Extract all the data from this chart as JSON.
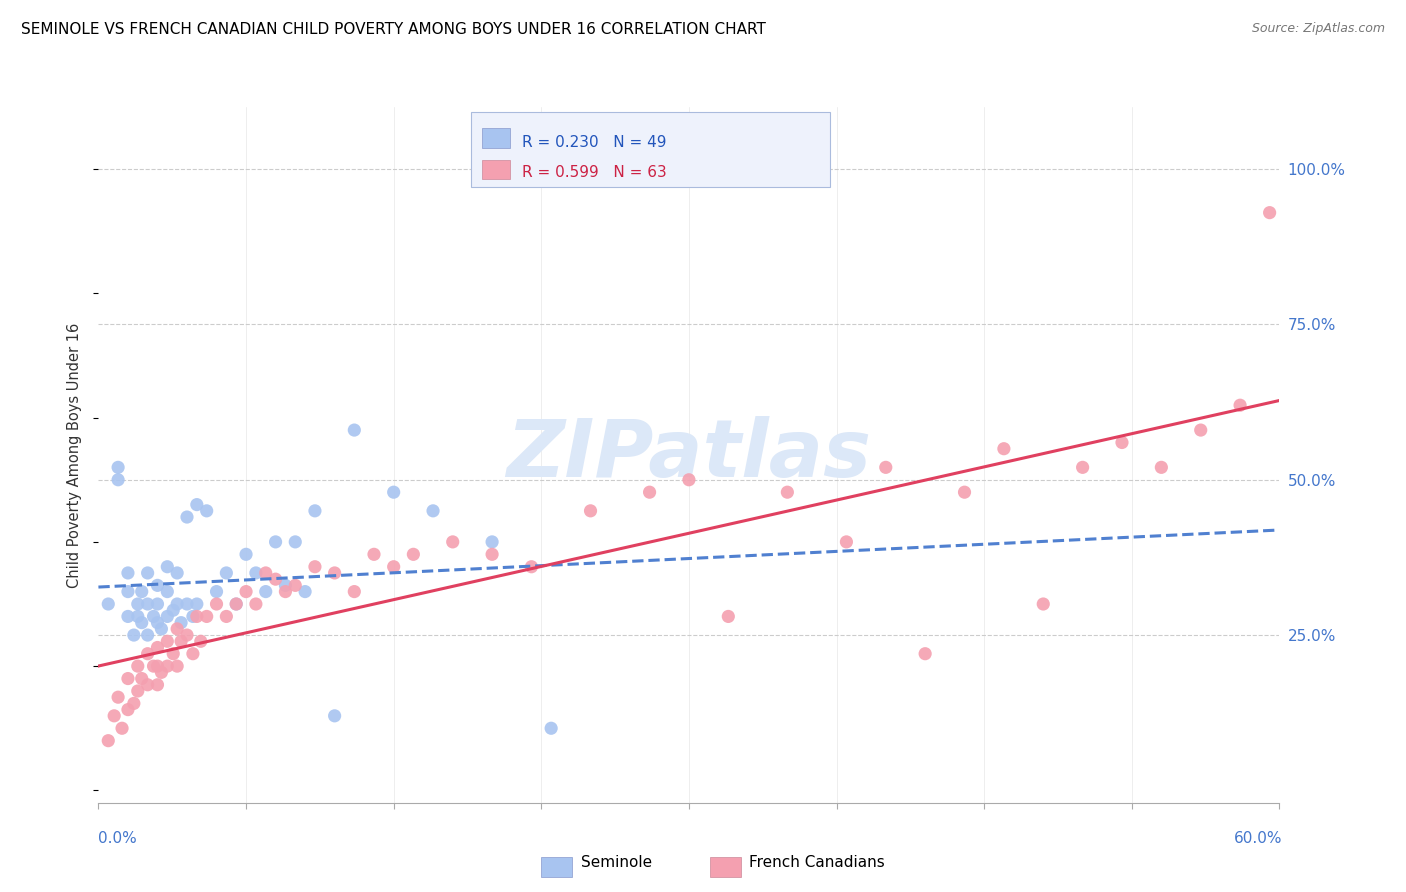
{
  "title": "SEMINOLE VS FRENCH CANADIAN CHILD POVERTY AMONG BOYS UNDER 16 CORRELATION CHART",
  "source": "Source: ZipAtlas.com",
  "ylabel": "Child Poverty Among Boys Under 16",
  "ytick_labels": [
    "100.0%",
    "75.0%",
    "50.0%",
    "25.0%"
  ],
  "ytick_values": [
    1.0,
    0.75,
    0.5,
    0.25
  ],
  "xmin": 0.0,
  "xmax": 0.6,
  "ymin": -0.02,
  "ymax": 1.1,
  "seminole_R": "0.230",
  "seminole_N": "49",
  "french_R": "0.599",
  "french_N": "63",
  "seminole_color": "#a8c4f0",
  "french_color": "#f4a0b0",
  "trendline_seminole_color": "#5080d0",
  "trendline_french_color": "#e04060",
  "watermark_color": "#dce8f8",
  "seminole_x": [
    0.005,
    0.01,
    0.01,
    0.015,
    0.015,
    0.015,
    0.018,
    0.02,
    0.02,
    0.022,
    0.022,
    0.025,
    0.025,
    0.025,
    0.028,
    0.03,
    0.03,
    0.03,
    0.032,
    0.035,
    0.035,
    0.035,
    0.038,
    0.04,
    0.04,
    0.042,
    0.045,
    0.045,
    0.048,
    0.05,
    0.05,
    0.055,
    0.06,
    0.065,
    0.07,
    0.075,
    0.08,
    0.085,
    0.09,
    0.095,
    0.1,
    0.105,
    0.11,
    0.12,
    0.13,
    0.15,
    0.17,
    0.2,
    0.23
  ],
  "seminole_y": [
    0.3,
    0.5,
    0.52,
    0.28,
    0.32,
    0.35,
    0.25,
    0.28,
    0.3,
    0.27,
    0.32,
    0.25,
    0.3,
    0.35,
    0.28,
    0.27,
    0.3,
    0.33,
    0.26,
    0.28,
    0.32,
    0.36,
    0.29,
    0.3,
    0.35,
    0.27,
    0.3,
    0.44,
    0.28,
    0.3,
    0.46,
    0.45,
    0.32,
    0.35,
    0.3,
    0.38,
    0.35,
    0.32,
    0.4,
    0.33,
    0.4,
    0.32,
    0.45,
    0.12,
    0.58,
    0.48,
    0.45,
    0.4,
    0.1
  ],
  "french_x": [
    0.005,
    0.008,
    0.01,
    0.012,
    0.015,
    0.015,
    0.018,
    0.02,
    0.02,
    0.022,
    0.025,
    0.025,
    0.028,
    0.03,
    0.03,
    0.03,
    0.032,
    0.035,
    0.035,
    0.038,
    0.04,
    0.04,
    0.042,
    0.045,
    0.048,
    0.05,
    0.052,
    0.055,
    0.06,
    0.065,
    0.07,
    0.075,
    0.08,
    0.085,
    0.09,
    0.095,
    0.1,
    0.11,
    0.12,
    0.13,
    0.14,
    0.15,
    0.16,
    0.18,
    0.2,
    0.22,
    0.25,
    0.28,
    0.3,
    0.32,
    0.35,
    0.38,
    0.4,
    0.42,
    0.44,
    0.46,
    0.48,
    0.5,
    0.52,
    0.54,
    0.56,
    0.58,
    0.595
  ],
  "french_y": [
    0.08,
    0.12,
    0.15,
    0.1,
    0.13,
    0.18,
    0.14,
    0.16,
    0.2,
    0.18,
    0.17,
    0.22,
    0.2,
    0.17,
    0.2,
    0.23,
    0.19,
    0.2,
    0.24,
    0.22,
    0.2,
    0.26,
    0.24,
    0.25,
    0.22,
    0.28,
    0.24,
    0.28,
    0.3,
    0.28,
    0.3,
    0.32,
    0.3,
    0.35,
    0.34,
    0.32,
    0.33,
    0.36,
    0.35,
    0.32,
    0.38,
    0.36,
    0.38,
    0.4,
    0.38,
    0.36,
    0.45,
    0.48,
    0.5,
    0.28,
    0.48,
    0.4,
    0.52,
    0.22,
    0.48,
    0.55,
    0.3,
    0.52,
    0.56,
    0.52,
    0.58,
    0.62,
    0.93
  ]
}
